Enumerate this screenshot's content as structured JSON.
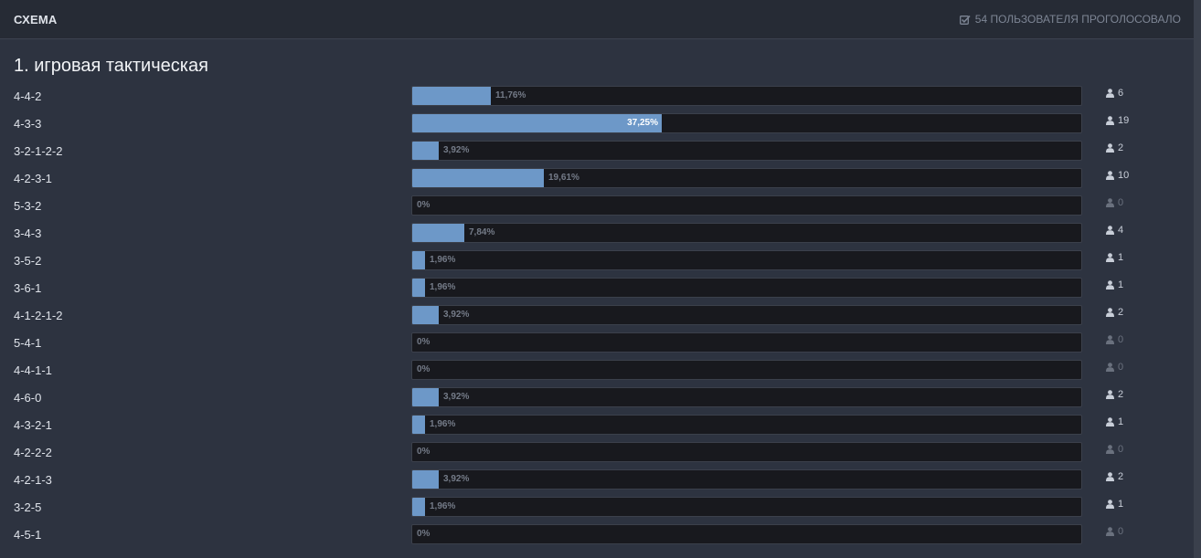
{
  "poll": {
    "title": "СХЕМА",
    "voters_text": "54 ПОЛЬЗОВАТЕЛЯ ПРОГОЛОСОВАЛО",
    "question": "1. игровая тактическая",
    "options": [
      {
        "label": "4-4-2",
        "percent_text": "11,76%",
        "percent": 11.76,
        "votes": "6"
      },
      {
        "label": "4-3-3",
        "percent_text": "37,25%",
        "percent": 37.25,
        "votes": "19"
      },
      {
        "label": "3-2-1-2-2",
        "percent_text": "3,92%",
        "percent": 3.92,
        "votes": "2"
      },
      {
        "label": "4-2-3-1",
        "percent_text": "19,61%",
        "percent": 19.61,
        "votes": "10"
      },
      {
        "label": "5-3-2",
        "percent_text": "0%",
        "percent": 0,
        "votes": "0"
      },
      {
        "label": "3-4-3",
        "percent_text": "7,84%",
        "percent": 7.84,
        "votes": "4"
      },
      {
        "label": "3-5-2",
        "percent_text": "1,96%",
        "percent": 1.96,
        "votes": "1"
      },
      {
        "label": "3-6-1",
        "percent_text": "1,96%",
        "percent": 1.96,
        "votes": "1"
      },
      {
        "label": "4-1-2-1-2",
        "percent_text": "3,92%",
        "percent": 3.92,
        "votes": "2"
      },
      {
        "label": "5-4-1",
        "percent_text": "0%",
        "percent": 0,
        "votes": "0"
      },
      {
        "label": "4-4-1-1",
        "percent_text": "0%",
        "percent": 0,
        "votes": "0"
      },
      {
        "label": "4-6-0",
        "percent_text": "3,92%",
        "percent": 3.92,
        "votes": "2"
      },
      {
        "label": "4-3-2-1",
        "percent_text": "1,96%",
        "percent": 1.96,
        "votes": "1"
      },
      {
        "label": "4-2-2-2",
        "percent_text": "0%",
        "percent": 0,
        "votes": "0"
      },
      {
        "label": "4-2-1-3",
        "percent_text": "3,92%",
        "percent": 3.92,
        "votes": "2"
      },
      {
        "label": "3-2-5",
        "percent_text": "1,96%",
        "percent": 1.96,
        "votes": "1"
      },
      {
        "label": "4-5-1",
        "percent_text": "0%",
        "percent": 0,
        "votes": "0"
      }
    ]
  },
  "icons": {
    "voters": "checkbox-checked-icon",
    "votes": "user-icon"
  },
  "colors": {
    "bar_fill": "#6d98c8",
    "bar_track": "#18191e",
    "background": "#2d3340",
    "header": "#262b35"
  }
}
